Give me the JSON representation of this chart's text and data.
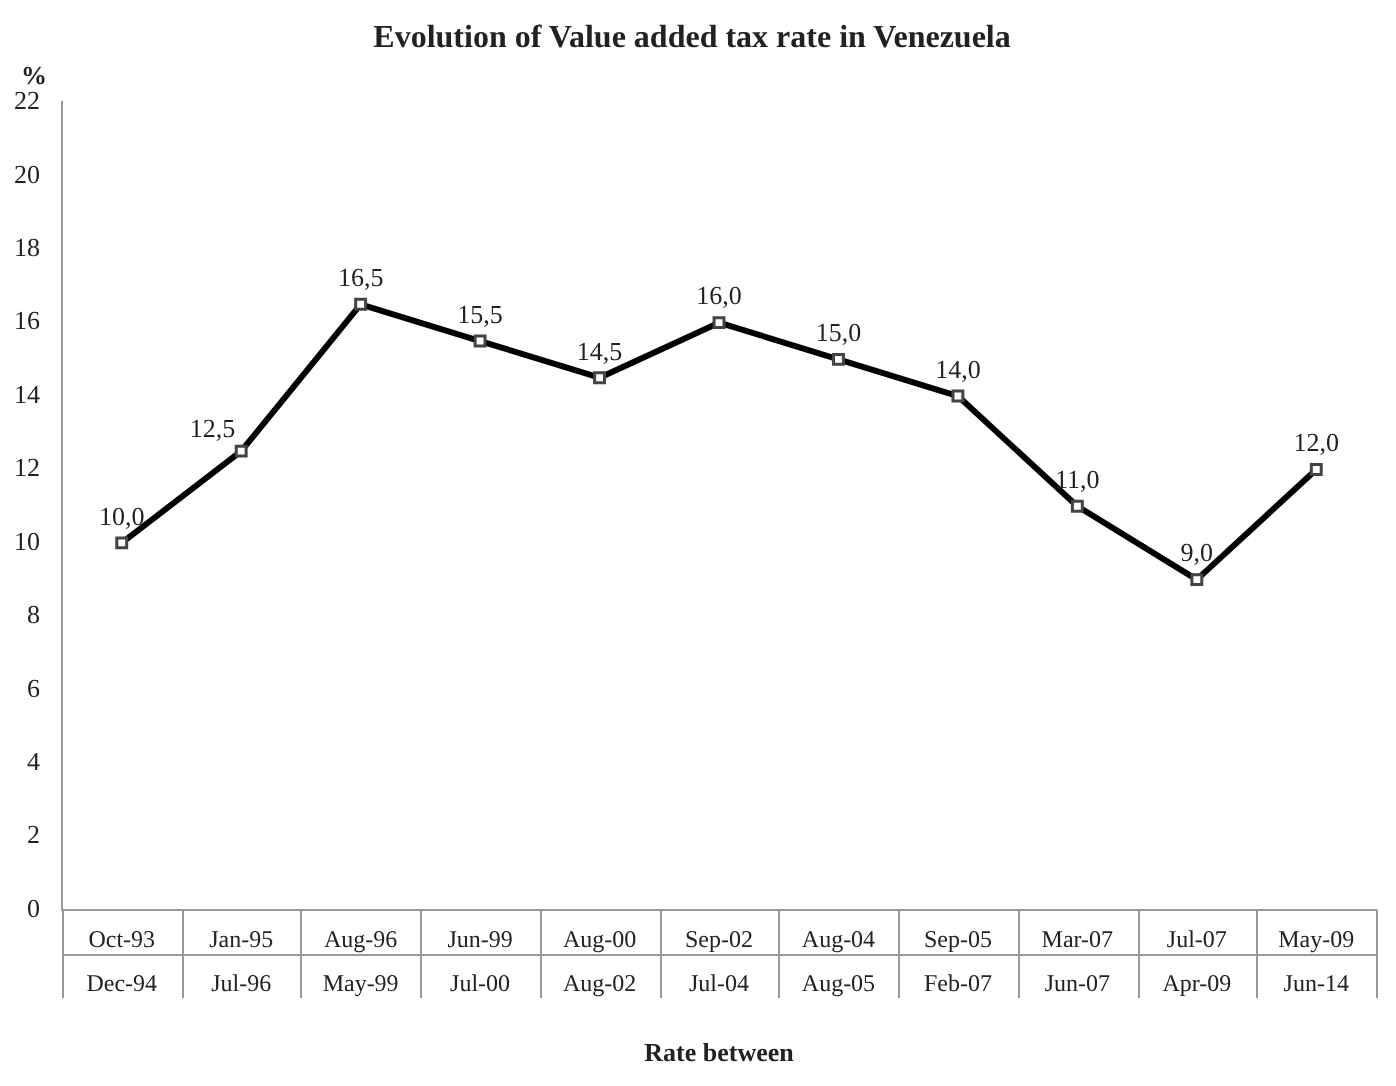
{
  "chart_data": {
    "type": "line",
    "title": "Evolution of Value added tax rate in Venezuela",
    "xlabel": "Rate between",
    "ylabel": "%",
    "categories": [
      "Oct-93\nDec-94",
      "Jan-95\nJul-96",
      "Aug-96\nMay-99",
      "Jun-99\nJul-00",
      "Aug-00\nAug-02",
      "Sep-02\nJul-04",
      "Aug-04\nAug-05",
      "Sep-05\nFeb-07",
      "Mar-07\nJun-07",
      "Jul-07\nApr-09",
      "May-09\nJun-14"
    ],
    "series": [
      {
        "color": "#000000",
        "values": [
          10,
          12.5,
          16.5,
          15.5,
          14.5,
          16,
          15,
          14,
          11,
          9,
          12
        ],
        "value_labels": [
          "10,0",
          "12,5",
          "16,5",
          "15,5",
          "14,5",
          "16,0",
          "15,0",
          "14,0",
          "11,0",
          "9,0",
          "12,0"
        ]
      }
    ],
    "ylim": [
      0,
      22
    ],
    "yticks": [
      0,
      2,
      4,
      6,
      8,
      10,
      12,
      14,
      16,
      18,
      20,
      22
    ],
    "grid": false,
    "legend": false,
    "marker": "square",
    "line_style": "solid"
  }
}
